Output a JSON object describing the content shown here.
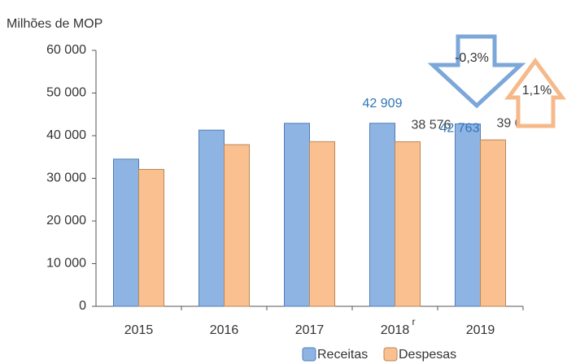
{
  "chart_data": {
    "type": "bar",
    "y_axis_label": "Milhões de MOP",
    "categories": [
      "2015",
      "2016",
      "2017",
      "2018",
      "2019"
    ],
    "category_superscripts": [
      null,
      null,
      null,
      "r",
      null
    ],
    "series": [
      {
        "name": "Receitas",
        "color": "#8eb4e3",
        "stroke": "#4f7db8",
        "label_color": "#2e75b6",
        "values": [
          34500,
          41300,
          42900,
          42909,
          42763
        ],
        "value_labels": [
          null,
          null,
          null,
          "42 909",
          "42 763"
        ]
      },
      {
        "name": "Despesas",
        "color": "#fac090",
        "stroke": "#b9875a",
        "label_color": "#404040",
        "values": [
          32100,
          37900,
          38600,
          38576,
          39013
        ],
        "value_labels": [
          null,
          null,
          null,
          "38 576",
          "39 013"
        ]
      }
    ],
    "ylim": [
      0,
      60000
    ],
    "yticks": [
      0,
      {
        "value": 10000,
        "label": "10 000"
      },
      {
        "value": 20000,
        "label": "20 000"
      },
      {
        "value": 30000,
        "label": "30 000"
      },
      {
        "value": 40000,
        "label": "40 000"
      },
      {
        "value": 50000,
        "label": "50 000"
      },
      {
        "value": 60000,
        "label": "60 000"
      }
    ],
    "annotations": [
      {
        "text": "-0,3%",
        "color": "#7ba7d9",
        "direction": "down"
      },
      {
        "text": "1,1%",
        "color": "#f5b98a",
        "direction": "up"
      }
    ],
    "legend": "bottom"
  }
}
